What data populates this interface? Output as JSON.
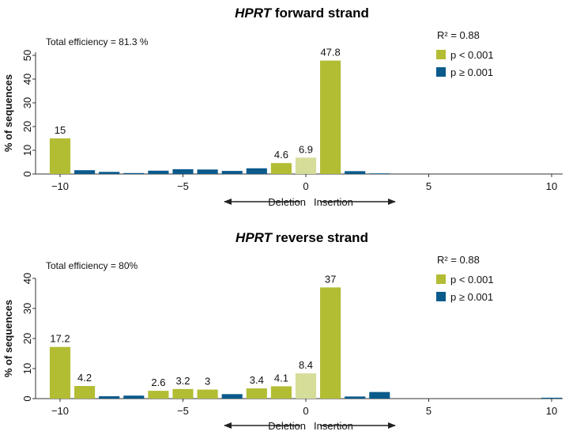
{
  "colors": {
    "significant": "#b2bd33",
    "not_significant": "#0b5a8c",
    "light": "#d6dd99",
    "axis": "#333333"
  },
  "chart_data": [
    {
      "type": "bar",
      "title_gene": "HPRT",
      "title_rest": "forward strand",
      "annotation": "Total efficiency = 81.3 %",
      "r2": "R² = 0.88",
      "legend": [
        {
          "label": "p < 0.001",
          "color_key": "significant"
        },
        {
          "label": "p ≥ 0.001",
          "color_key": "not_significant"
        }
      ],
      "xlabel_left": "Deletion",
      "xlabel_right": "Insertion",
      "ylabel": "% of sequences",
      "ylim": [
        0,
        50
      ],
      "yticks": [
        "0",
        "10",
        "20",
        "30",
        "40",
        "50"
      ],
      "xlim": [
        -11,
        10.5
      ],
      "xticks": [
        {
          "v": -10,
          "t": "−10"
        },
        {
          "v": -5,
          "t": "−5"
        },
        {
          "v": 0,
          "t": "0"
        },
        {
          "v": 5,
          "t": "5"
        },
        {
          "v": 10,
          "t": "10"
        }
      ],
      "bars": [
        {
          "x": -10,
          "value": 15,
          "color": "significant",
          "label": "15"
        },
        {
          "x": -9,
          "value": 1.6,
          "color": "not_significant",
          "label": ""
        },
        {
          "x": -8,
          "value": 0.9,
          "color": "not_significant",
          "label": ""
        },
        {
          "x": -7,
          "value": 0.4,
          "color": "not_significant",
          "label": ""
        },
        {
          "x": -6,
          "value": 1.4,
          "color": "not_significant",
          "label": ""
        },
        {
          "x": -5,
          "value": 2.0,
          "color": "not_significant",
          "label": ""
        },
        {
          "x": -4,
          "value": 1.9,
          "color": "not_significant",
          "label": ""
        },
        {
          "x": -3,
          "value": 1.3,
          "color": "not_significant",
          "label": ""
        },
        {
          "x": -2,
          "value": 2.4,
          "color": "not_significant",
          "label": ""
        },
        {
          "x": -1,
          "value": 4.6,
          "color": "significant",
          "label": "4.6"
        },
        {
          "x": 0,
          "value": 6.9,
          "color": "light",
          "label": "6.9"
        },
        {
          "x": 1,
          "value": 47.8,
          "color": "significant",
          "label": "47.8"
        },
        {
          "x": 2,
          "value": 1.2,
          "color": "not_significant",
          "label": ""
        },
        {
          "x": 3,
          "value": 0.15,
          "color": "not_significant",
          "label": ""
        }
      ]
    },
    {
      "type": "bar",
      "title_gene": "HPRT",
      "title_rest": "reverse strand",
      "annotation": "Total efficiency = 80%",
      "r2": "R² = 0.88",
      "legend": [
        {
          "label": "p < 0.001",
          "color_key": "significant"
        },
        {
          "label": "p ≥ 0.001",
          "color_key": "not_significant"
        }
      ],
      "xlabel_left": "Deletion",
      "xlabel_right": "Insertion",
      "ylabel": "% of sequences",
      "ylim": [
        0,
        40
      ],
      "yticks": [
        "0",
        "10",
        "20",
        "30",
        "40"
      ],
      "xlim": [
        -11,
        10.5
      ],
      "xticks": [
        {
          "v": -10,
          "t": "−10"
        },
        {
          "v": -5,
          "t": "−5"
        },
        {
          "v": 0,
          "t": "0"
        },
        {
          "v": 5,
          "t": "5"
        },
        {
          "v": 10,
          "t": "10"
        }
      ],
      "bars": [
        {
          "x": -10,
          "value": 17.2,
          "color": "significant",
          "label": "17.2"
        },
        {
          "x": -9,
          "value": 4.2,
          "color": "significant",
          "label": "4.2"
        },
        {
          "x": -8,
          "value": 0.8,
          "color": "not_significant",
          "label": ""
        },
        {
          "x": -7,
          "value": 1.0,
          "color": "not_significant",
          "label": ""
        },
        {
          "x": -6,
          "value": 2.6,
          "color": "significant",
          "label": "2.6"
        },
        {
          "x": -5,
          "value": 3.2,
          "color": "significant",
          "label": "3.2"
        },
        {
          "x": -4,
          "value": 3.0,
          "color": "significant",
          "label": "3"
        },
        {
          "x": -3,
          "value": 1.5,
          "color": "not_significant",
          "label": ""
        },
        {
          "x": -2,
          "value": 3.4,
          "color": "significant",
          "label": "3.4"
        },
        {
          "x": -1,
          "value": 4.1,
          "color": "significant",
          "label": "4.1"
        },
        {
          "x": 0,
          "value": 8.4,
          "color": "light",
          "label": "8.4"
        },
        {
          "x": 1,
          "value": 37,
          "color": "significant",
          "label": "37"
        },
        {
          "x": 2,
          "value": 0.7,
          "color": "not_significant",
          "label": ""
        },
        {
          "x": 3,
          "value": 2.2,
          "color": "not_significant",
          "label": ""
        },
        {
          "x": 10,
          "value": 0.3,
          "color": "not_significant",
          "label": ""
        }
      ]
    }
  ]
}
